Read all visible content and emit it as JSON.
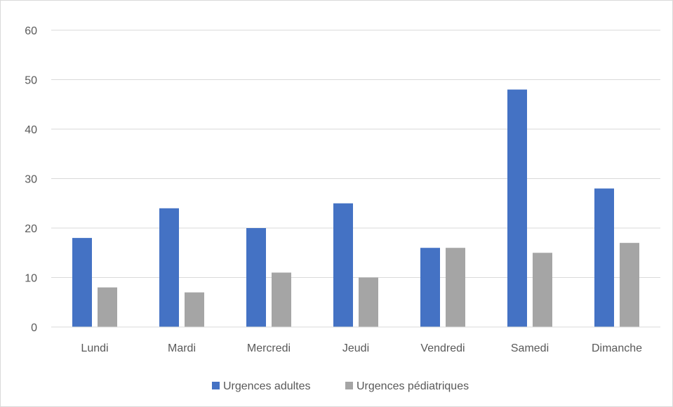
{
  "chart_data": {
    "type": "bar",
    "title": "",
    "xlabel": "",
    "ylabel": "",
    "categories": [
      "Lundi",
      "Mardi",
      "Mercredi",
      "Jeudi",
      "Vendredi",
      "Samedi",
      "Dimanche"
    ],
    "series": [
      {
        "name": "Urgences adultes",
        "color": "#4472c4",
        "values": [
          18,
          24,
          20,
          25,
          16,
          48,
          28
        ]
      },
      {
        "name": "Urgences pédiatriques",
        "color": "#a5a5a5",
        "values": [
          8,
          7,
          11,
          10,
          16,
          15,
          17
        ]
      }
    ],
    "ylim": [
      0,
      60
    ],
    "yticks": [
      "0",
      "10",
      "20",
      "30",
      "40",
      "50",
      "60"
    ],
    "grid": true,
    "grid_color": "#d9d9d9",
    "legend_position": "bottom"
  }
}
